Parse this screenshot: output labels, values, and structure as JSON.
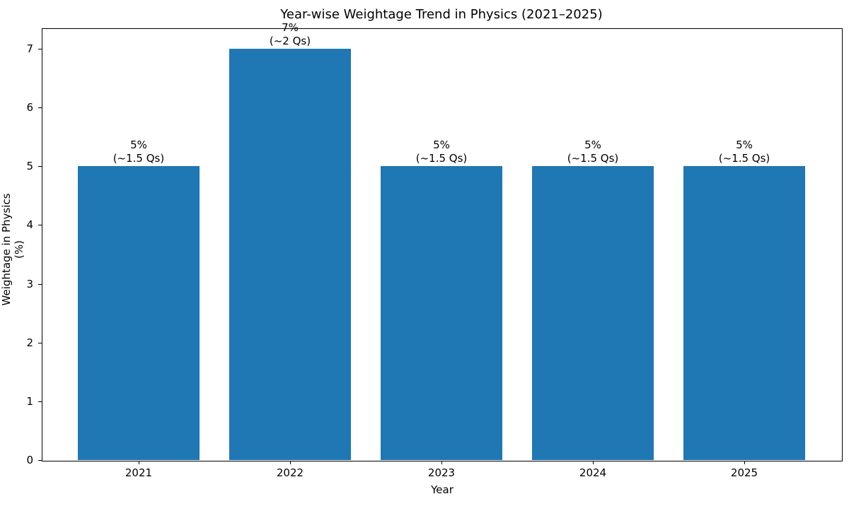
{
  "chart_data": {
    "type": "bar",
    "title": "Year-wise Weightage Trend in Physics (2021–2025)",
    "xlabel": "Year",
    "ylabel": "Weightage in Physics (%)",
    "categories": [
      "2021",
      "2022",
      "2023",
      "2024",
      "2025"
    ],
    "values": [
      5,
      7,
      5,
      5,
      5
    ],
    "bar_labels": [
      "5%\n(~1.5 Qs)",
      "7%\n(~2 Qs)",
      "5%\n(~1.5 Qs)",
      "5%\n(~1.5 Qs)",
      "5%\n(~1.5 Qs)"
    ],
    "ylim": [
      0,
      7.35
    ],
    "yticks": [
      "0",
      "1",
      "2",
      "3",
      "4",
      "5",
      "6",
      "7"
    ],
    "grid": false,
    "legend": null,
    "bar_color": "#1f77b4"
  }
}
